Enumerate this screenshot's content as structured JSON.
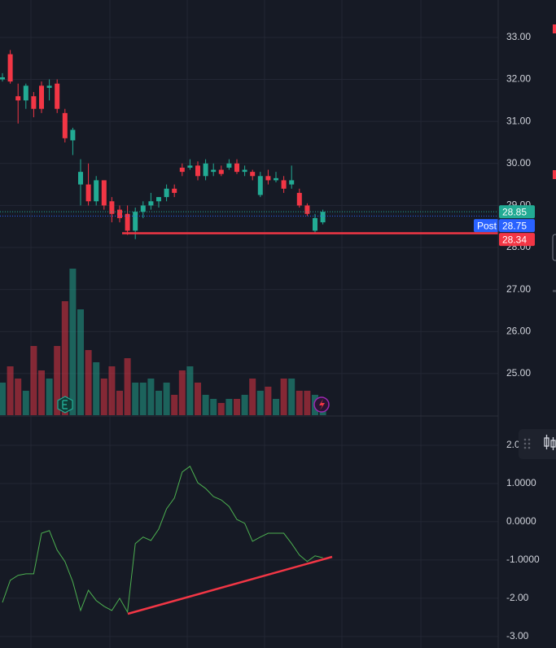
{
  "chart_data": {
    "type": "candlestick",
    "ylim": [
      24.01,
      33.89
    ],
    "yticks": [
      {
        "value": 25,
        "label": "25.00"
      },
      {
        "value": 26,
        "label": "26.00"
      },
      {
        "value": 27,
        "label": "27.00"
      },
      {
        "value": 28,
        "label": "28.00"
      },
      {
        "value": 29,
        "label": "29.00"
      },
      {
        "value": 30,
        "label": "30.00"
      },
      {
        "value": 31,
        "label": "31.00"
      },
      {
        "value": 32,
        "label": "32.00"
      },
      {
        "value": 33,
        "label": "33.00"
      }
    ],
    "up_color": "#22ab94",
    "down_color": "#f23645",
    "open": [
      32.0,
      32.6,
      31.6,
      31.5,
      31.6,
      31.85,
      31.8,
      31.9,
      31.2,
      30.55,
      29.5,
      29.5,
      29.1,
      29.6,
      29.1,
      28.9,
      28.8,
      28.4,
      28.85,
      29.0,
      29.1,
      29.2,
      29.4,
      29.9,
      29.9,
      29.95,
      29.7,
      29.8,
      29.85,
      29.9,
      30.0,
      29.8,
      29.8,
      29.25,
      29.7,
      29.6,
      29.6,
      29.5,
      29.3,
      29.0,
      28.4,
      28.6
    ],
    "high": [
      32.15,
      32.7,
      31.9,
      31.9,
      31.7,
      31.95,
      32.0,
      32.0,
      31.3,
      30.85,
      30.1,
      30.0,
      29.7,
      29.6,
      29.2,
      29.0,
      29.0,
      28.95,
      29.1,
      29.3,
      29.2,
      29.5,
      29.5,
      30.0,
      30.1,
      30.05,
      30.1,
      30.0,
      29.95,
      30.1,
      30.1,
      29.95,
      29.85,
      29.8,
      29.85,
      29.8,
      29.7,
      29.95,
      29.4,
      29.05,
      28.8,
      28.9
    ],
    "low": [
      31.95,
      31.9,
      30.95,
      31.3,
      31.1,
      31.2,
      31.5,
      31.2,
      30.5,
      30.2,
      29.0,
      29.0,
      29.0,
      28.9,
      28.6,
      28.6,
      28.3,
      28.2,
      28.7,
      28.9,
      28.95,
      29.1,
      29.2,
      29.7,
      29.85,
      29.6,
      29.6,
      29.7,
      29.7,
      29.85,
      29.75,
      29.7,
      29.6,
      29.2,
      29.5,
      29.55,
      29.3,
      29.4,
      28.95,
      28.75,
      28.35,
      28.55
    ],
    "close": [
      32.05,
      31.95,
      31.5,
      31.85,
      31.3,
      31.3,
      31.85,
      31.3,
      30.6,
      30.8,
      29.8,
      29.1,
      29.6,
      29.0,
      28.8,
      28.7,
      28.4,
      28.85,
      29.0,
      29.1,
      29.2,
      29.4,
      29.3,
      29.8,
      29.95,
      29.7,
      30.0,
      29.85,
      29.75,
      30.0,
      29.8,
      29.85,
      29.7,
      29.7,
      29.6,
      29.65,
      29.4,
      29.6,
      29.0,
      28.8,
      28.7,
      28.85
    ],
    "volume": [
      40,
      60,
      45,
      30,
      85,
      55,
      45,
      85,
      140,
      180,
      130,
      80,
      65,
      45,
      60,
      30,
      70,
      40,
      40,
      45,
      30,
      40,
      25,
      55,
      60,
      40,
      25,
      20,
      15,
      20,
      20,
      25,
      45,
      30,
      35,
      20,
      45,
      45,
      30,
      30,
      25,
      15
    ],
    "volume_ylim": [
      0,
      200
    ],
    "price_tags": [
      {
        "value": 28.85,
        "color": "#22ab94"
      },
      {
        "value": 28.75,
        "color": "#2962ff"
      },
      {
        "value": 28.34,
        "color": "#f23645"
      }
    ],
    "post_label": "Post",
    "oscillator": {
      "color": "#4caf50",
      "values": [
        -2.11,
        -1.53,
        -1.4,
        -1.36,
        -1.36,
        -0.3,
        -0.23,
        -0.74,
        -1.04,
        -1.57,
        -2.32,
        -1.79,
        -2.06,
        -2.21,
        -2.32,
        -2.0,
        -2.36,
        -0.57,
        -0.4,
        -0.49,
        -0.19,
        0.34,
        0.62,
        1.3,
        1.45,
        1.02,
        0.87,
        0.66,
        0.57,
        0.4,
        0.06,
        -0.04,
        -0.51,
        -0.4,
        -0.3,
        -0.3,
        -0.3,
        -0.57,
        -0.87,
        -1.04,
        -0.89,
        -0.94
      ],
      "ylim": [
        -3.3,
        2.68
      ],
      "yticks": [
        {
          "value": -3,
          "label": "-3.00"
        },
        {
          "value": -2,
          "label": "-2.00"
        },
        {
          "value": -1,
          "label": "-1.0000"
        },
        {
          "value": 0,
          "label": "0.0000"
        },
        {
          "value": 1,
          "label": "1.0000"
        },
        {
          "value": 2,
          "label": "2.0"
        }
      ]
    }
  }
}
